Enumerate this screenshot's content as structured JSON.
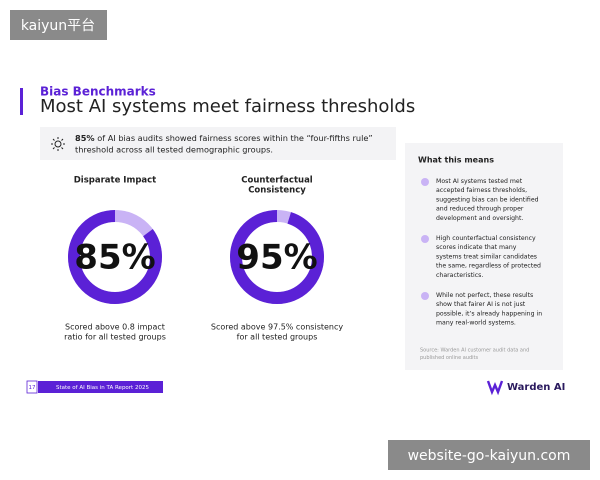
{
  "badge_top": "kaiyun平台",
  "header": {
    "eyebrow": "Bias Benchmarks",
    "title": "Most AI systems meet fairness thresholds"
  },
  "callout": {
    "highlight": "85%",
    "lines": [
      " of AI bias audits showed fairness scores within the “four-fifths rule”",
      "threshold across all tested demographic groups."
    ]
  },
  "metrics": [
    {
      "title": [
        "Disparate Impact"
      ],
      "value": 85,
      "value_label": "85%",
      "caption": [
        "Scored above 0.8 impact",
        "ratio for all tested groups"
      ]
    },
    {
      "title": [
        "Counterfactual",
        "Consistency"
      ],
      "value": 95,
      "value_label": "95%",
      "caption": [
        "Scored above 97.5% consistency",
        "for all tested groups"
      ]
    }
  ],
  "panel": {
    "title": "What this means",
    "bullets": [
      [
        "Most AI systems tested met",
        "accepted fairness thresholds,",
        "suggesting bias can be identified",
        "and reduced through proper",
        "development and oversight."
      ],
      [
        "High counterfactual consistency",
        "scores indicate that many",
        "systems treat similar candidates",
        "the same, regardless of protected",
        "characteristics."
      ],
      [
        "While not perfect, these results",
        "show that fairer AI is not just",
        "possible, it’s already happening in",
        "many real-world systems."
      ]
    ],
    "source": [
      "Source: Warden AI customer audit data and",
      "published online audits"
    ]
  },
  "footer": {
    "page": "17",
    "report": "State of AI Bias in TA Report 2025",
    "brand": "Warden AI"
  },
  "badge_bottom": "website-go-kaiyun.com"
}
